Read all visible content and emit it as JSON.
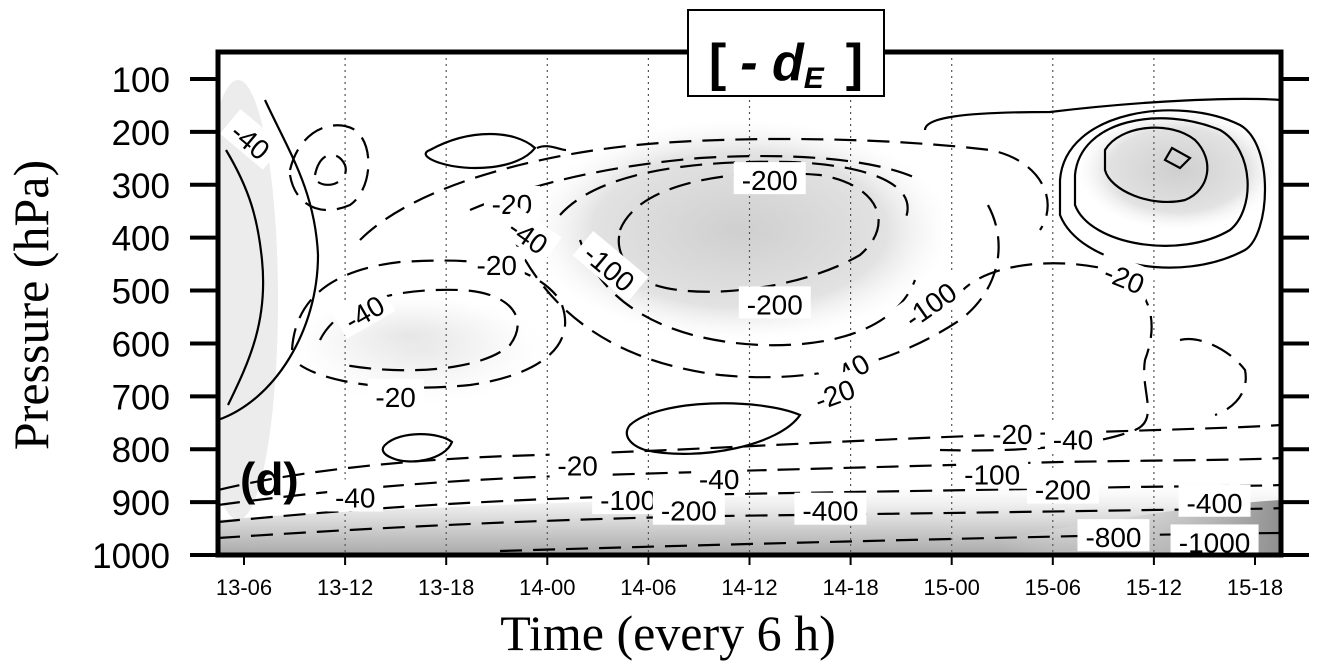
{
  "chart_data": {
    "type": "contour",
    "title": "[ - dE ]",
    "title_parts": {
      "open": "[",
      "prefix": "- d",
      "subscript": "E",
      "close": "]"
    },
    "panel_label": "(d)",
    "xlabel": "Time  (every 6 h)",
    "ylabel": "Pressure (hPa)",
    "x_ticks": [
      "13-06",
      "13-12",
      "13-18",
      "14-00",
      "14-06",
      "14-12",
      "14-18",
      "15-00",
      "15-06",
      "15-12",
      "15-18"
    ],
    "y_ticks": [
      100,
      200,
      300,
      400,
      500,
      600,
      700,
      800,
      900,
      1000
    ],
    "ylim": [
      1000,
      100
    ],
    "y_inverted": true,
    "grid": "vertical dotted lines at each x tick",
    "shading": "gray fill where values are strongly negative",
    "contour_levels": [
      40,
      -20,
      -40,
      -100,
      -200,
      -400,
      -800,
      -1000
    ],
    "contour_labels": [
      {
        "text": "-40",
        "x": 0.05,
        "y": 220,
        "rotate": 40
      },
      {
        "text": "-20",
        "x": 2.65,
        "y": 340
      },
      {
        "text": "-40",
        "x": 2.8,
        "y": 400,
        "rotate": 35
      },
      {
        "text": "-20",
        "x": 2.5,
        "y": 455
      },
      {
        "text": "-100",
        "x": 3.6,
        "y": 460,
        "rotate": 40
      },
      {
        "text": "-200",
        "x": 5.2,
        "y": 295
      },
      {
        "text": "-40",
        "x": 1.2,
        "y": 545,
        "rotate": -30
      },
      {
        "text": "-200",
        "x": 5.25,
        "y": 530
      },
      {
        "text": "-100",
        "x": 6.8,
        "y": 530,
        "rotate": -35
      },
      {
        "text": "-20",
        "x": 8.7,
        "y": 480,
        "rotate": 22
      },
      {
        "text": "-40",
        "x": 6.0,
        "y": 655,
        "rotate": -30
      },
      {
        "text": "-20",
        "x": 5.85,
        "y": 700,
        "rotate": -20
      },
      {
        "text": "-20",
        "x": 1.5,
        "y": 705
      },
      {
        "text": "-20",
        "x": 7.6,
        "y": 775
      },
      {
        "text": "-40",
        "x": 8.2,
        "y": 785
      },
      {
        "text": "-20",
        "x": 3.3,
        "y": 835
      },
      {
        "text": "-40",
        "x": 4.7,
        "y": 860
      },
      {
        "text": "-100",
        "x": 7.4,
        "y": 852
      },
      {
        "text": "-200",
        "x": 8.1,
        "y": 880
      },
      {
        "text": "-40",
        "x": 1.1,
        "y": 895
      },
      {
        "text": "-100",
        "x": 3.8,
        "y": 900
      },
      {
        "text": "-200",
        "x": 4.4,
        "y": 920
      },
      {
        "text": "-400",
        "x": 5.8,
        "y": 920
      },
      {
        "text": "-400",
        "x": 9.6,
        "y": 905
      },
      {
        "text": "-800",
        "x": 8.6,
        "y": 970
      },
      {
        "text": "-1000",
        "x": 9.6,
        "y": 980
      }
    ]
  }
}
